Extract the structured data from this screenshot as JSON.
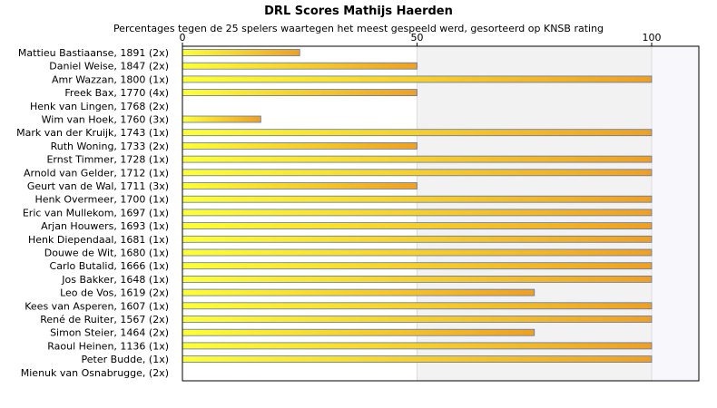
{
  "chart_data": {
    "type": "bar",
    "orientation": "horizontal",
    "title": "DRL Scores Mathijs Haerden",
    "subtitle": "Percentages tegen de 25 spelers waartegen het meest gespeeld werd, gesorteerd op KNSB rating",
    "xlabel": "",
    "ylabel": "",
    "xlim": [
      0,
      110
    ],
    "xticks": [
      0,
      50,
      100
    ],
    "categories": [
      "Mattieu Bastiaanse, 1891 (2x)",
      "Daniel Weise, 1847 (2x)",
      "Amr Wazzan, 1800 (1x)",
      "Freek Bax, 1770 (4x)",
      "Henk van Lingen, 1768 (2x)",
      "Wim van Hoek, 1760 (3x)",
      "Mark van der Kruijk, 1743 (1x)",
      "Ruth Woning, 1733 (2x)",
      "Ernst Timmer, 1728 (1x)",
      "Arnold van Gelder, 1712 (1x)",
      "Geurt van de Wal, 1711 (3x)",
      "Henk Overmeer, 1700 (1x)",
      "Eric van Mullekom, 1697 (1x)",
      "Arjan Houwers, 1693 (1x)",
      "Henk Diependaal, 1681 (1x)",
      "Douwe de Wit, 1680 (1x)",
      "Carlo Butalid, 1666 (1x)",
      "Jos Bakker, 1648 (1x)",
      "Leo de Vos, 1619 (2x)",
      "Kees van Asperen, 1607 (1x)",
      "René de Ruiter, 1567 (2x)",
      "Simon Steier, 1464 (2x)",
      "Raoul Heinen, 1136 (1x)",
      "Peter Budde,  (1x)",
      "Mienuk van Osnabrugge,  (2x)"
    ],
    "values": [
      25,
      50,
      100,
      50,
      0,
      16.7,
      100,
      50,
      100,
      100,
      50,
      100,
      100,
      100,
      100,
      100,
      100,
      100,
      75,
      100,
      100,
      75,
      100,
      100,
      0
    ],
    "grid": true,
    "legend": "none",
    "colors": {
      "bar_start": "#ffff33",
      "bar_end": "#f0a020",
      "bar_stroke": "#5577bb",
      "axis": "#000000",
      "band_light": "#ffffff",
      "band_shade": "#f2f2f2",
      "band_right": "#f7f7fc",
      "grid": "#dddddd"
    }
  }
}
